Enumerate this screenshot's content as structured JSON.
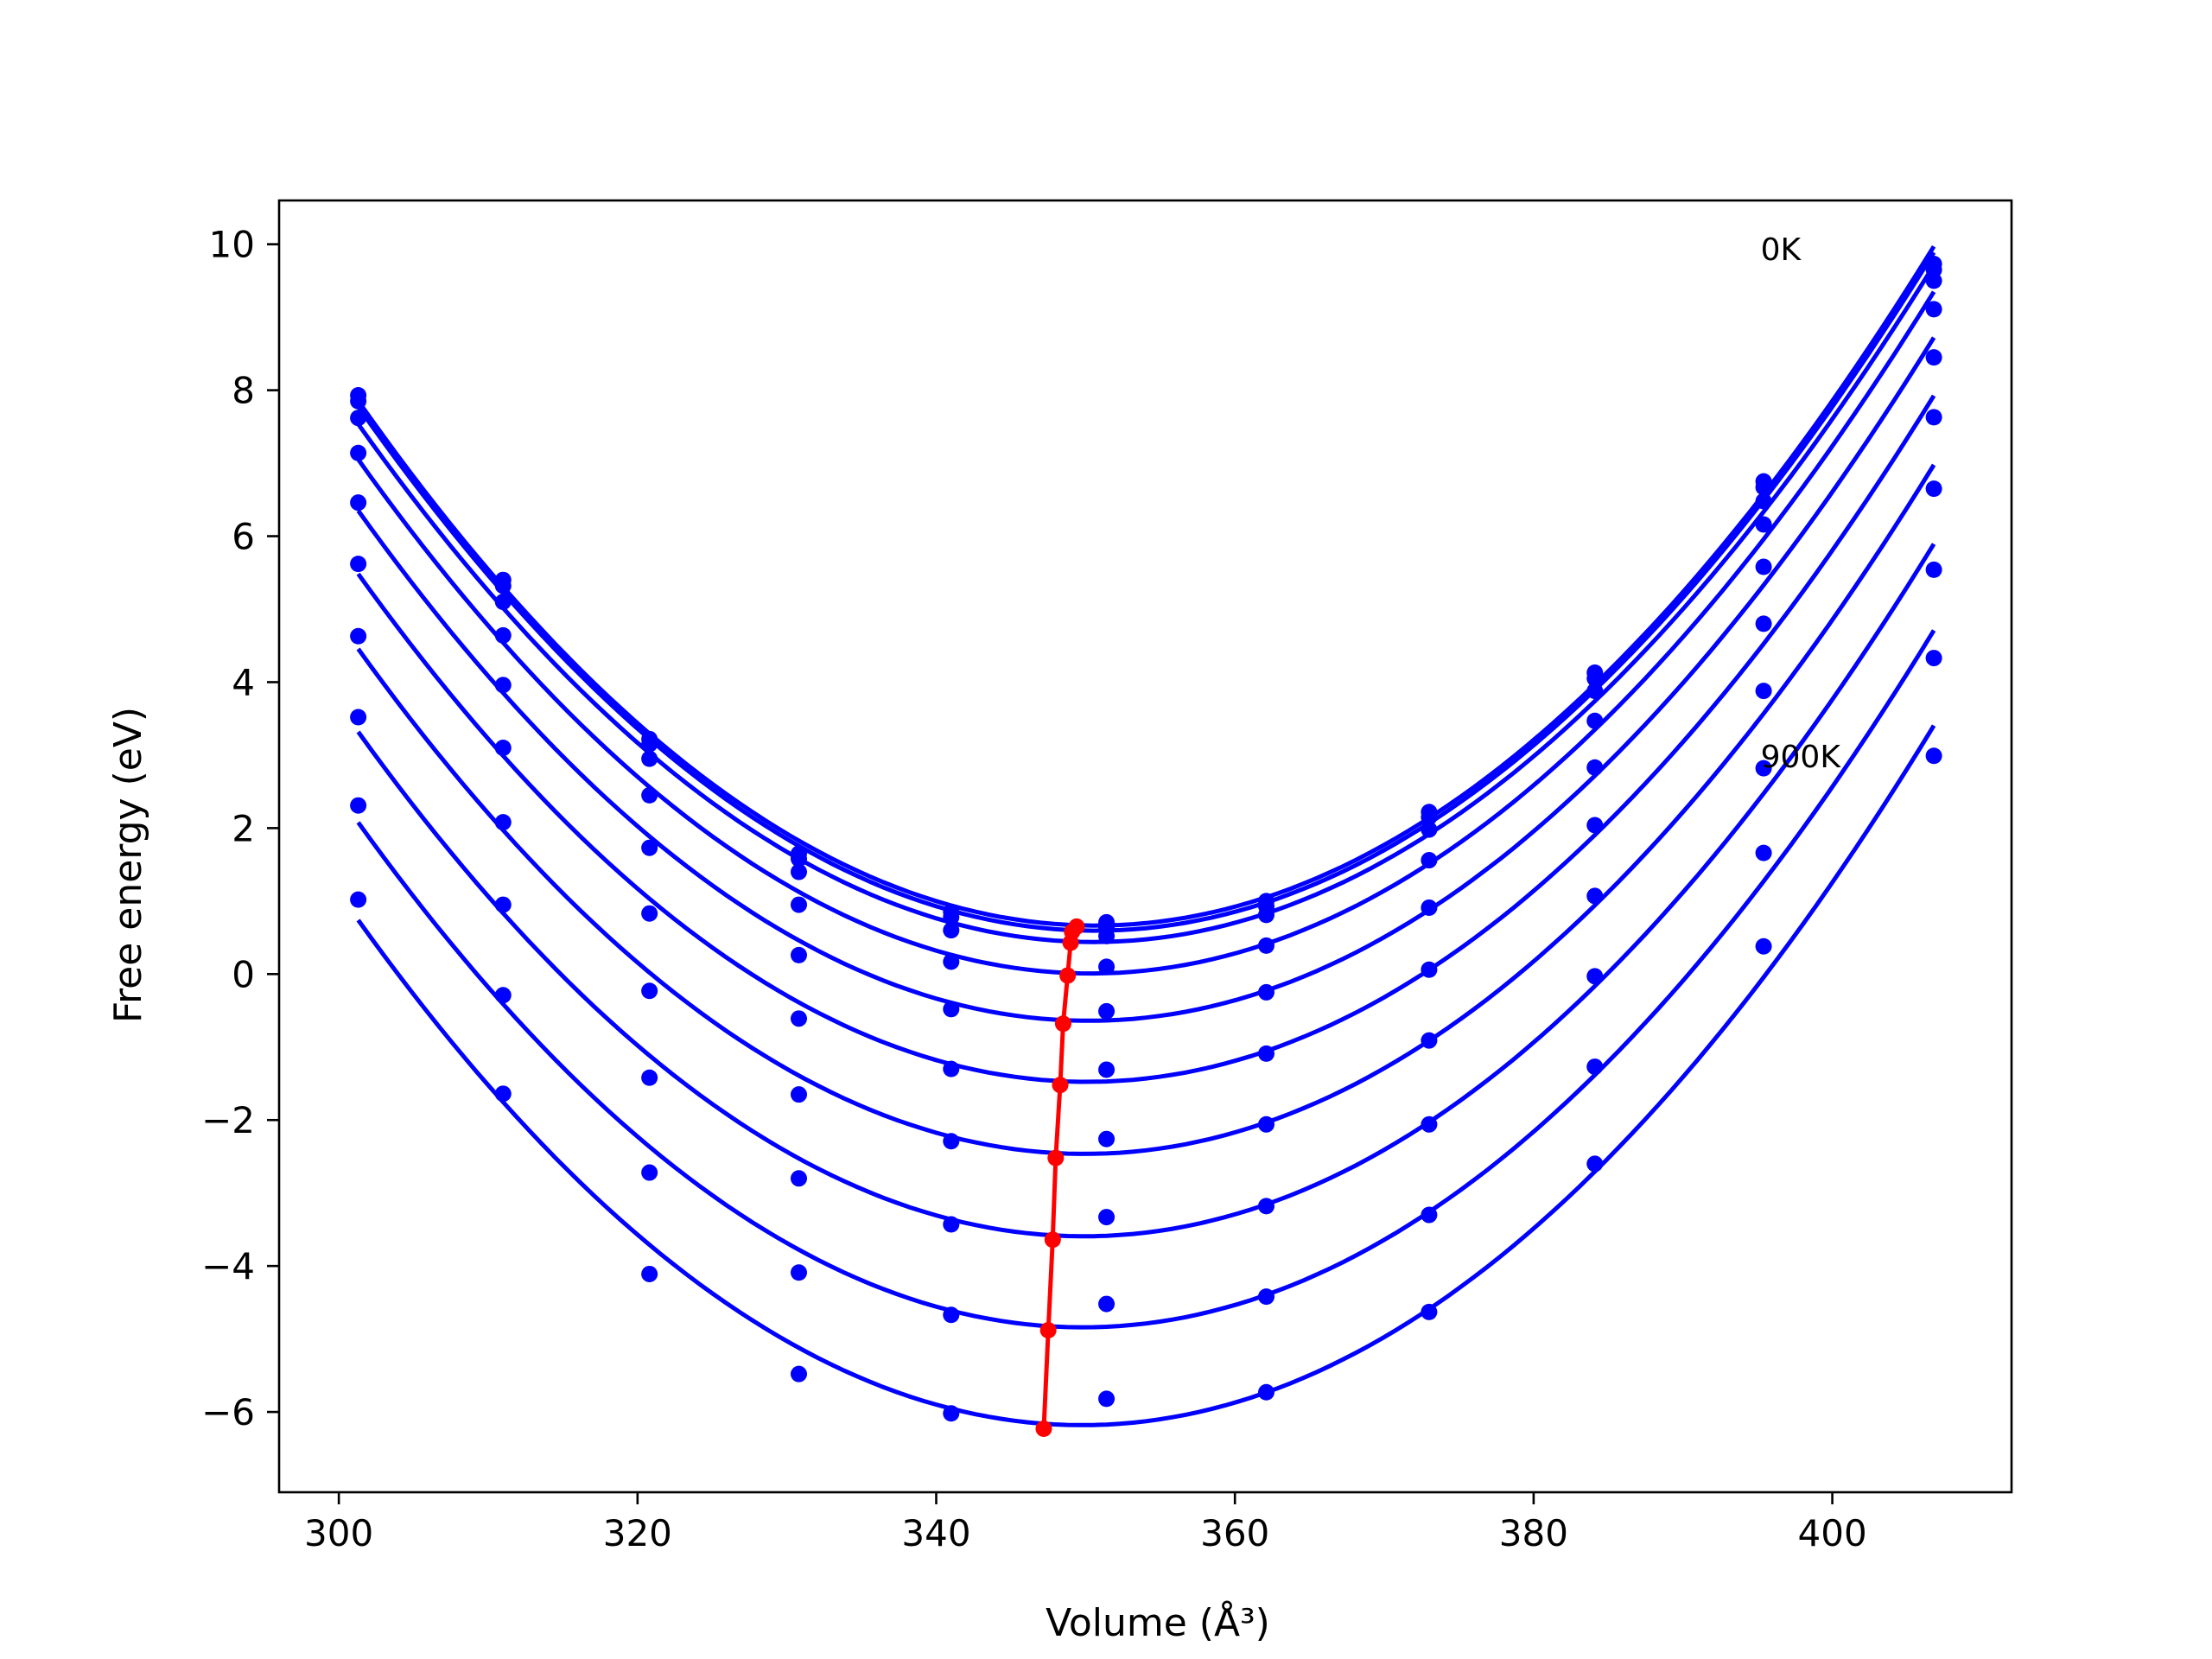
{
  "chart_data": {
    "type": "scatter",
    "xlabel": "Volume (Å³)",
    "ylabel": "Free energy (eV)",
    "xlim": [
      296,
      412
    ],
    "ylim": [
      -7.1,
      10.6
    ],
    "xticks": [
      300,
      320,
      340,
      360,
      380,
      400
    ],
    "xtick_labels": [
      "300",
      "320",
      "340",
      "360",
      "380",
      "400"
    ],
    "yticks": [
      -6,
      -4,
      -2,
      0,
      2,
      4,
      6,
      8,
      10
    ],
    "ytick_labels": [
      "−6",
      "−4",
      "−2",
      "0",
      "2",
      "4",
      "6",
      "8",
      "10"
    ],
    "grid": false,
    "annotations": [
      {
        "text": "0K",
        "x": 395.2,
        "y": 9.95
      },
      {
        "text": "900K",
        "x": 395.2,
        "y": 3.0
      }
    ],
    "x_volumes": [
      301.3,
      311.0,
      320.8,
      330.8,
      341.0,
      351.4,
      362.1,
      373.0,
      384.1,
      395.4,
      406.8
    ],
    "temperatures": [
      {
        "energies": [
          7.93,
          5.4,
          3.22,
          1.65,
          0.85,
          0.71,
          1.0,
          2.22,
          4.13,
          6.75,
          9.73
        ],
        "curve_min": [
          349.4,
          0.65
        ]
      },
      {
        "energies": [
          7.85,
          5.32,
          3.15,
          1.58,
          0.78,
          0.64,
          0.93,
          2.15,
          4.05,
          6.67,
          9.65
        ],
        "curve_min": [
          349.1,
          0.58
        ]
      },
      {
        "energies": [
          7.62,
          5.1,
          2.95,
          1.4,
          0.6,
          0.52,
          0.81,
          1.98,
          3.88,
          6.48,
          9.5
        ],
        "curve_min": [
          349.0,
          0.43
        ]
      },
      {
        "energies": [
          7.14,
          4.64,
          2.45,
          0.95,
          0.17,
          0.1,
          0.39,
          1.56,
          3.47,
          6.16,
          9.11
        ],
        "curve_min": [
          348.8,
          -0.02
        ]
      },
      {
        "energies": [
          6.46,
          3.96,
          1.73,
          0.26,
          -0.48,
          -0.51,
          -0.25,
          0.91,
          2.83,
          5.58,
          8.45
        ],
        "curve_min": [
          348.5,
          -0.68
        ]
      },
      {
        "energies": [
          5.62,
          3.1,
          0.83,
          -0.61,
          -1.3,
          -1.31,
          -1.09,
          0.06,
          2.04,
          4.8,
          7.63
        ],
        "curve_min": [
          348.3,
          -1.52
        ]
      },
      {
        "energies": [
          4.63,
          2.08,
          -0.23,
          -1.65,
          -2.29,
          -2.26,
          -2.06,
          -0.91,
          1.07,
          3.88,
          6.65
        ],
        "curve_min": [
          348.0,
          -2.52
        ]
      },
      {
        "energies": [
          3.52,
          0.95,
          -1.42,
          -2.8,
          -3.43,
          -3.33,
          -3.18,
          -2.06,
          -0.03,
          2.82,
          5.54
        ],
        "curve_min": [
          347.8,
          -3.64
        ]
      },
      {
        "energies": [
          2.31,
          -0.29,
          -2.72,
          -4.09,
          -4.67,
          -4.52,
          -4.42,
          -3.3,
          -1.27,
          1.66,
          4.33
        ],
        "curve_min": [
          347.5,
          -4.88
        ]
      },
      {
        "energies": [
          1.02,
          -1.64,
          -4.11,
          -5.48,
          -6.02,
          -5.82,
          -5.73,
          -4.63,
          -2.6,
          0.38,
          2.99
        ],
        "curve_min": [
          347.2,
          -6.23
        ]
      }
    ],
    "series": [
      {
        "role": "data-points",
        "color": "#0000ff",
        "marker": "circle"
      },
      {
        "role": "fitted-curves",
        "color": "#0000ff",
        "style": "line"
      },
      {
        "role": "minimum-trace",
        "color": "#ff0000",
        "style": "line-with-markers"
      }
    ]
  }
}
